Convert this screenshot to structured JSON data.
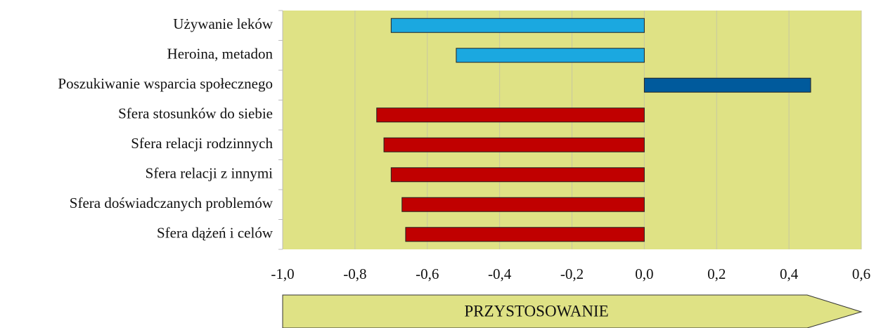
{
  "chart_data": {
    "type": "barh",
    "categories": [
      "Używanie leków",
      "Heroina, metadon",
      "Poszukiwanie wsparcia społecznego",
      "Sfera stosunków do siebie",
      "Sfera relacji rodzinnych",
      "Sfera relacji z innymi",
      "Sfera doświadczanych problemów",
      "Sfera dążeń i celów"
    ],
    "values": [
      -0.7,
      -0.52,
      0.46,
      -0.74,
      -0.72,
      -0.7,
      -0.67,
      -0.66
    ],
    "colors": [
      "#1ba8e0",
      "#1ba8e0",
      "#005a9c",
      "#c00000",
      "#c00000",
      "#c00000",
      "#c00000",
      "#c00000"
    ],
    "xlim": [
      -1.0,
      0.6
    ],
    "xticks": [
      {
        "value": -1.0,
        "label": "-1,0"
      },
      {
        "value": -0.8,
        "label": "-0,8"
      },
      {
        "value": -0.6,
        "label": "-0,6"
      },
      {
        "value": -0.4,
        "label": "-0,4"
      },
      {
        "value": -0.2,
        "label": "-0,2"
      },
      {
        "value": 0.0,
        "label": "0,0"
      },
      {
        "value": 0.2,
        "label": "0,2"
      },
      {
        "value": 0.4,
        "label": "0,4"
      },
      {
        "value": 0.6,
        "label": "0,6"
      }
    ],
    "grid": true,
    "annotation": "PRZYSTOSOWANIE"
  }
}
